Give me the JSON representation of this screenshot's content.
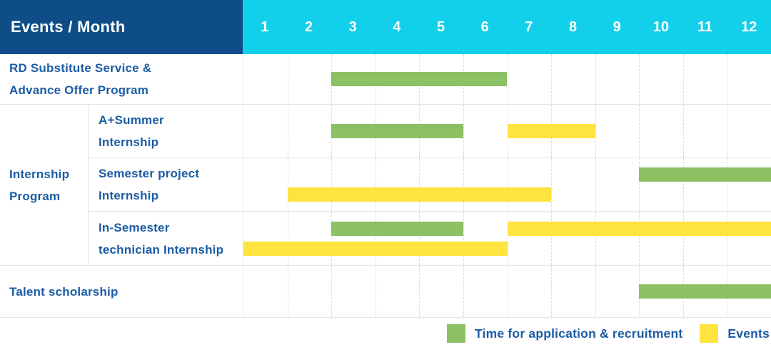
{
  "header": {
    "row_label": "Events / Month",
    "months": [
      "1",
      "2",
      "3",
      "4",
      "5",
      "6",
      "7",
      "8",
      "9",
      "10",
      "11",
      "12"
    ]
  },
  "chart_data": {
    "type": "gantt",
    "x_unit": "month",
    "x_range": [
      1,
      12
    ],
    "bar_types": {
      "application": {
        "meaning": "Time for application & recruitment",
        "color": "#8BC163"
      },
      "event": {
        "meaning": "Events",
        "color": "#FFE33F"
      }
    },
    "sections": [
      {
        "kind": "row",
        "label_lines": [
          "RD Substitute Service &",
          "Advance Offer Program"
        ],
        "lines": [
          [
            {
              "type": "application",
              "start_month": 3,
              "end_month": 6
            }
          ]
        ]
      },
      {
        "kind": "group",
        "label_lines": [
          "Internship",
          "Program"
        ],
        "rows": [
          {
            "label_lines": [
              "A+Summer",
              "Internship"
            ],
            "lines": [
              [
                {
                  "type": "application",
                  "start_month": 3,
                  "end_month": 5
                },
                {
                  "type": "event",
                  "start_month": 7,
                  "end_month": 8
                }
              ]
            ]
          },
          {
            "label_lines": [
              "Semester project",
              "Internship"
            ],
            "lines": [
              [
                {
                  "type": "application",
                  "start_month": 10,
                  "end_month": 12
                }
              ],
              [
                {
                  "type": "event",
                  "start_month": 2,
                  "end_month": 7
                }
              ]
            ]
          },
          {
            "label_lines": [
              "In-Semester",
              "technician Internship"
            ],
            "lines": [
              [
                {
                  "type": "application",
                  "start_month": 3,
                  "end_month": 5
                },
                {
                  "type": "event",
                  "start_month": 7,
                  "end_month": 12
                }
              ],
              [
                {
                  "type": "event",
                  "start_month": 1,
                  "end_month": 6
                }
              ]
            ]
          }
        ]
      },
      {
        "kind": "row",
        "label_lines": [
          "Talent scholarship"
        ],
        "lines": [
          [
            {
              "type": "application",
              "start_month": 10,
              "end_month": 12
            }
          ]
        ]
      }
    ]
  },
  "legend": [
    {
      "type": "application",
      "color": "#8BC163",
      "label": "Time for application & recruitment"
    },
    {
      "type": "event",
      "color": "#FFE33F",
      "label": "Events"
    }
  ],
  "colors": {
    "header_navy": "#0E4D87",
    "header_cyan": "#12CFEA",
    "bar_green": "#8BC163",
    "bar_yellow": "#FFE33F",
    "label_blue": "#1B5CA4",
    "grid_line": "#E5E5E5"
  }
}
